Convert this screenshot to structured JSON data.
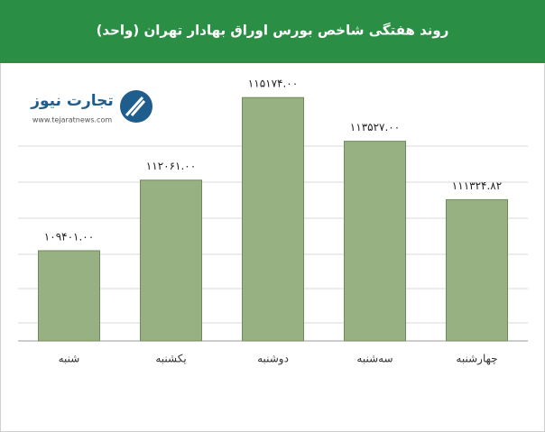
{
  "chart_data": {
    "type": "bar",
    "title": "روند هفتگی شاخص بورس اوراق بهادار تهران (واحد)",
    "categories": [
      "شنبه",
      "یکشنبه",
      "دوشنبه",
      "سه‌شنبه",
      "چهارشنبه"
    ],
    "values": [
      109401.0,
      112061.0,
      115174.0,
      113527.0,
      111324.82
    ],
    "value_labels": [
      "۱۰۹۴۰۱.۰۰",
      "۱۱۲۰۶۱.۰۰",
      "۱۱۵۱۷۴.۰۰",
      "۱۱۳۵۲۷.۰۰",
      "۱۱۱۳۲۴.۸۲"
    ],
    "color": "#98b182",
    "ylim": [
      106000,
      116500
    ],
    "logo": {
      "name": "تجارت نیوز",
      "url": "www.tejaratnews.com"
    }
  }
}
